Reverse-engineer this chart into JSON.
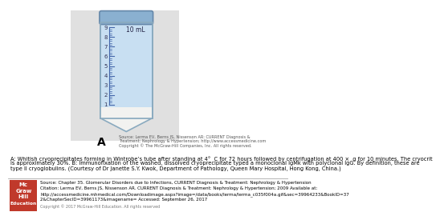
{
  "tube_label": "10 mL",
  "tick_labels": [
    "9",
    "8",
    "7",
    "6",
    "5",
    "4",
    "3",
    "2",
    "1"
  ],
  "label_A": "A",
  "source_line1": "Source: Lerma EV, Berns JS, Nissenson AR: CURRENT Diagnosis &",
  "source_line2": "Treatment: Nephrology & Hypertension; http://www.accessmedicine.com",
  "source_line3": "Copyright © The McGraw-Hill Companies, Inc. All rights reserved.",
  "caption_line1": "A: Whitish cryoprecipitates forming in Wintrobe’s tube after standing at 4°  C for 72 hours followed by centrifugation at 400 ×  g for 10 minutes. The cryocrit",
  "caption_line2": "is approximately 30%. B: Immunofixation of the washed, dissolved cryoprecipitate typed a monoclonal IgMk with polyclonal IgG. By definition, these are",
  "caption_line3": "type II cryoglobulins. (Courtesy of Dr Janette S.Y. Kwok, Department of Pathology, Queen Mary Hospital, Hong Kong, China.)",
  "footer_source": "Source: Chapter 35. Glomerular Disorders due to Infections, CURRENT Diagnosis & Treatment: Nephrology & Hypertension",
  "footer_citation": "Citation: Lerma EV, Berns JS, Nissenson AR. CURRENT Diagnosis & Treatment: Nephrology & Hypertension; 2009 Available at:",
  "footer_url": "http://accessmedicine.mhmedical.com/Downloadimage.aspx?image=/data/books/lerma/lerma_c035f004a.gif&sec=39964233&BookID=37",
  "footer_url2": "2&ChapterSecID=39961173&imagename= Accessed: September 26, 2017",
  "footer_copy": "Copyright © 2017 McGraw-Hill Education. All rights reserved",
  "mcgraw_text": [
    "Mc",
    "Graw",
    "Hill",
    "Education"
  ],
  "mcgraw_bg": "#c0392b",
  "tube_fill": "#c8dff2",
  "tube_border": "#8aaabf",
  "cap_fill": "#8ab0d0",
  "cap_border": "#6688aa",
  "cryo_fill": "#f2f2f0",
  "gray_bg": "#e0e0e0",
  "scale_line_color": "#4466aa",
  "text_color": "#222222"
}
